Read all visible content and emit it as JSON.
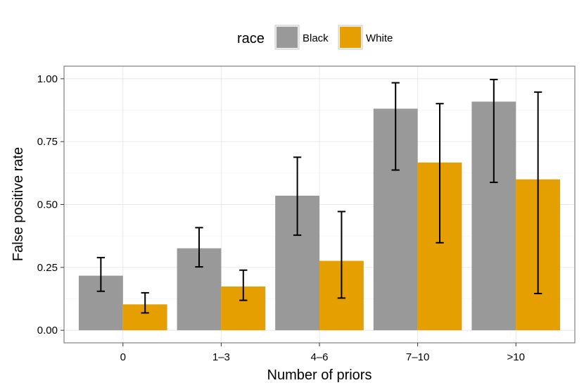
{
  "chart_data": {
    "type": "bar",
    "title": "",
    "xlabel": "Number of priors",
    "ylabel": "False positive rate",
    "categories": [
      "0",
      "1–3",
      "4–6",
      "7–10",
      ">10"
    ],
    "ylim": [
      -0.05,
      1.05
    ],
    "yticks": [
      0.0,
      0.25,
      0.5,
      0.75,
      1.0
    ],
    "ytick_labels": [
      "0.00",
      "0.25",
      "0.50",
      "0.75",
      "1.00"
    ],
    "grid": true,
    "legend": {
      "title": "race",
      "position": "top"
    },
    "series": [
      {
        "name": "Black",
        "color": "#999999",
        "values": [
          0.217,
          0.326,
          0.535,
          0.881,
          0.909
        ],
        "err_low": [
          0.155,
          0.252,
          0.378,
          0.637,
          0.588
        ],
        "err_high": [
          0.289,
          0.408,
          0.688,
          0.984,
          0.997
        ]
      },
      {
        "name": "White",
        "color": "#E69F00",
        "values": [
          0.103,
          0.174,
          0.276,
          0.667,
          0.6
        ],
        "err_low": [
          0.069,
          0.119,
          0.128,
          0.348,
          0.146
        ],
        "err_high": [
          0.149,
          0.239,
          0.472,
          0.901,
          0.947
        ]
      }
    ]
  }
}
